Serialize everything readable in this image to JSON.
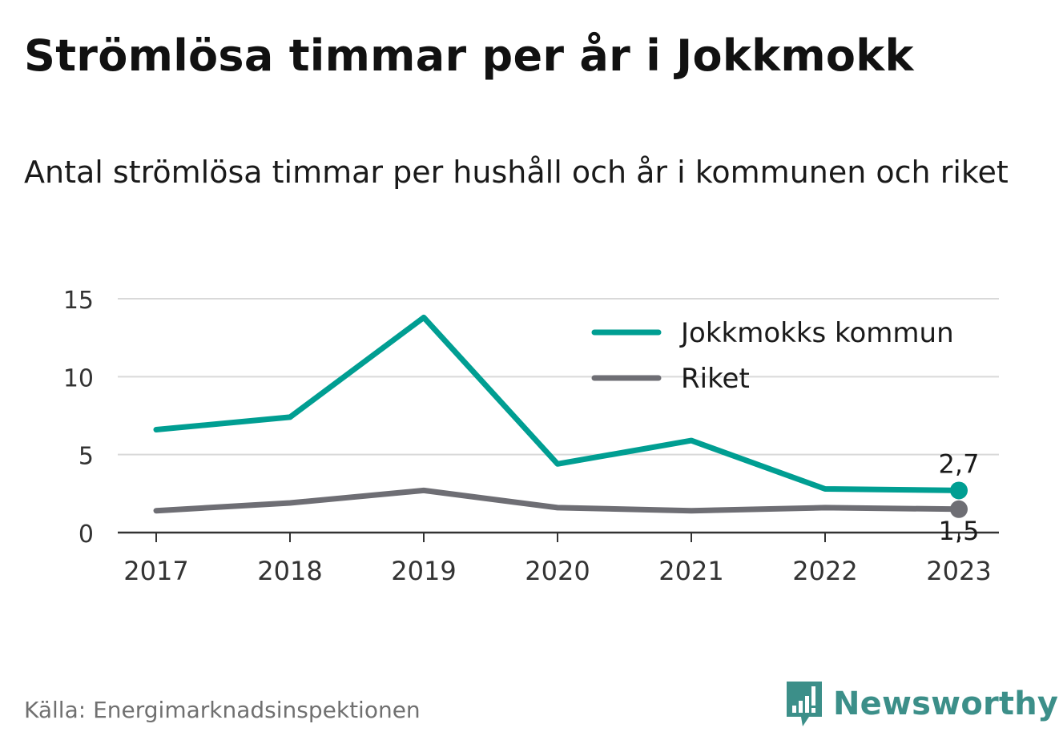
{
  "title": "Strömlösa timmar per år i Jokkmokk",
  "subtitle": "Antal strömlösa timmar per hushåll och år i kommunen och riket",
  "source": "Källa: Energimarknadsinspektionen",
  "brand": {
    "name": "Newsworthy",
    "icon": "newsworthy-logo-icon",
    "color": "#3c8f89"
  },
  "chart_data": {
    "type": "line",
    "x": [
      "2017",
      "2018",
      "2019",
      "2020",
      "2021",
      "2022",
      "2023"
    ],
    "yticks": [
      "0",
      "5",
      "10",
      "15"
    ],
    "ylim": [
      0,
      15
    ],
    "grid": true,
    "legend_position": "top-right",
    "series": [
      {
        "name": "Jokkmokks kommun",
        "color": "#009e92",
        "values": [
          6.6,
          7.4,
          13.8,
          4.4,
          5.9,
          2.8,
          2.7
        ],
        "end_label": "2,7"
      },
      {
        "name": "Riket",
        "color": "#6e6e74",
        "values": [
          1.4,
          1.9,
          2.7,
          1.6,
          1.4,
          1.6,
          1.5
        ],
        "end_label": "1,5"
      }
    ]
  }
}
